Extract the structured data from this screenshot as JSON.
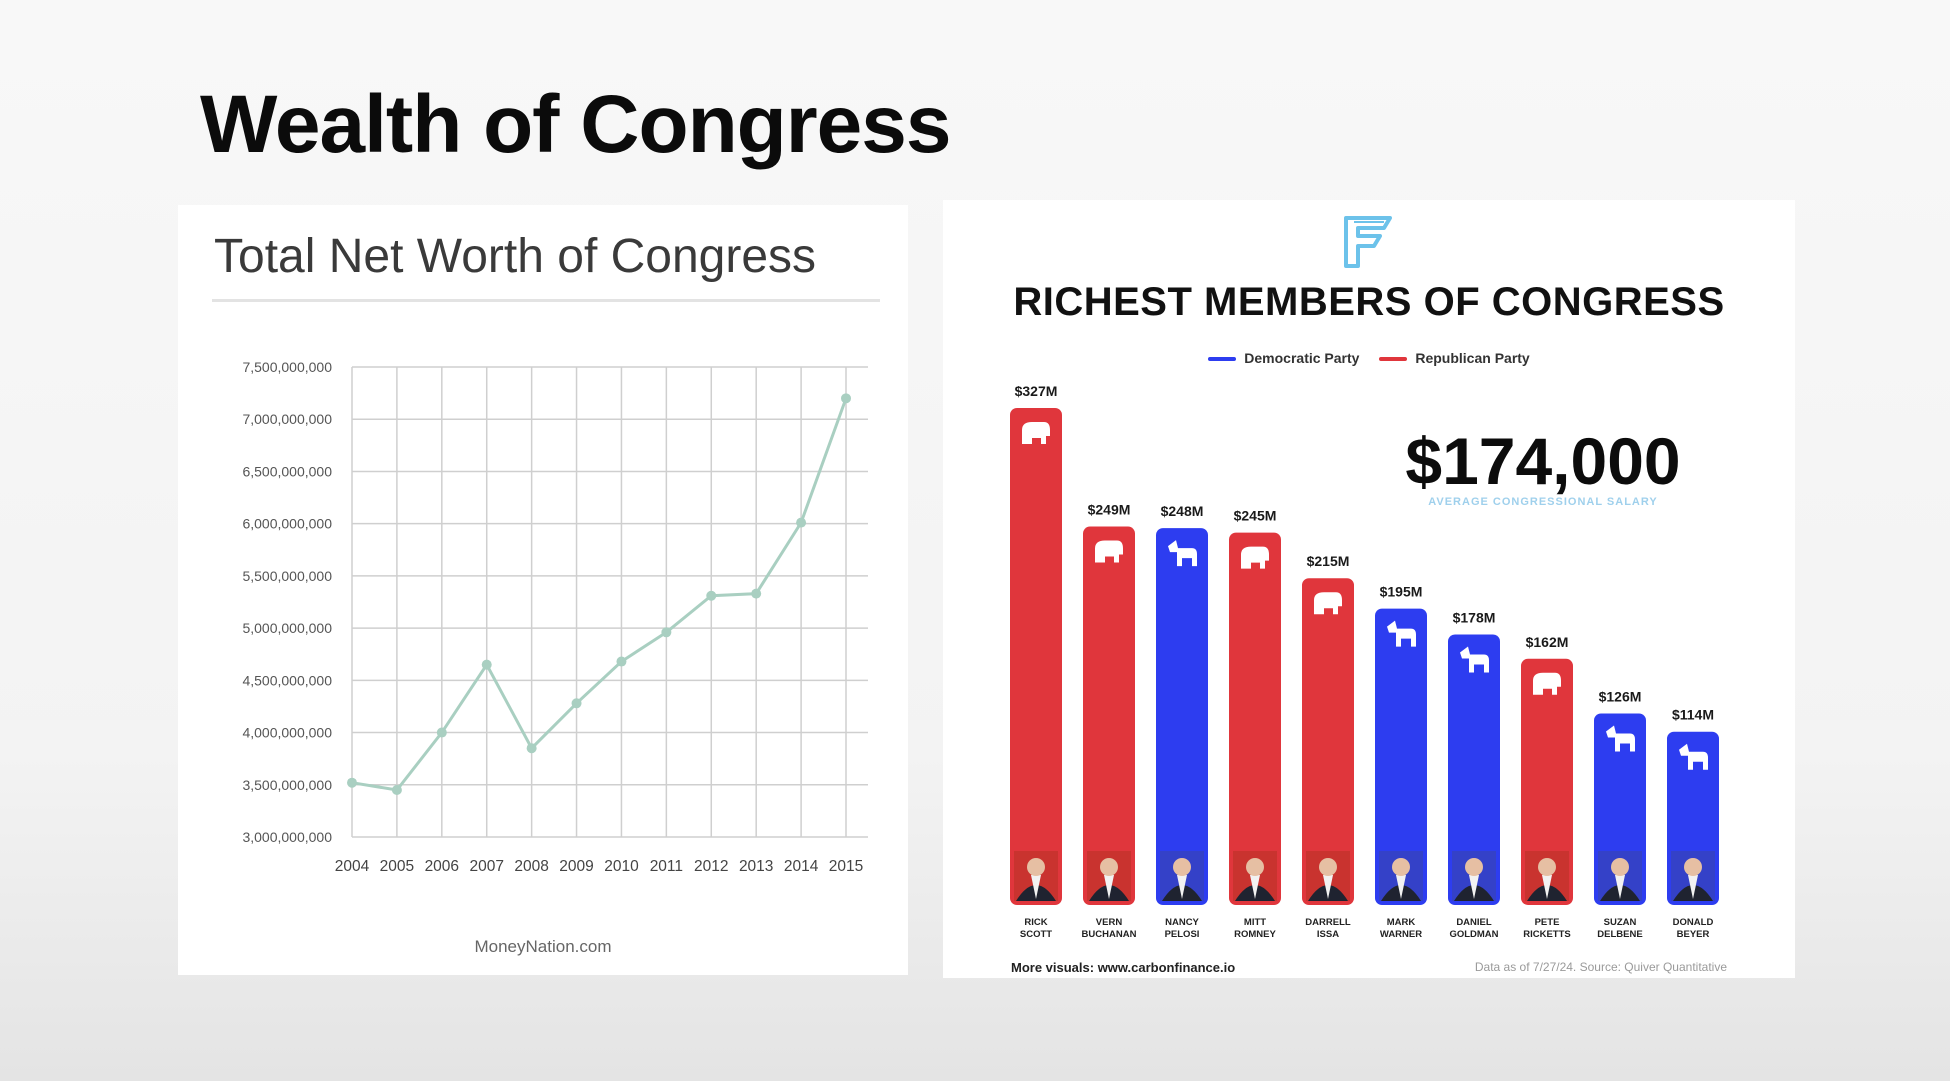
{
  "slide": {
    "title": "Wealth of Congress"
  },
  "left_chart": {
    "title": "Total Net Worth of Congress",
    "source": "MoneyNation.com"
  },
  "right_chart": {
    "title": "RICHEST MEMBERS OF CONGRESS",
    "legend": [
      {
        "label": "Democratic Party",
        "color": "#2d3df0"
      },
      {
        "label": "Republican Party",
        "color": "#e0363c"
      }
    ],
    "salary_value": "$174,000",
    "salary_caption": "AVERAGE CONGRESSIONAL SALARY",
    "footer_left": "More visuals: www.carbonfinance.io",
    "footer_right": "Data as of 7/27/24. Source: Quiver Quantitative"
  },
  "colors": {
    "democratic": "#2d3df0",
    "republican": "#e0363c",
    "line": "#a9cfc1",
    "logo": "#6cc2ea"
  },
  "chart_data": [
    {
      "type": "line",
      "title": "Total Net Worth of Congress",
      "x": [
        "2004",
        "2005",
        "2006",
        "2007",
        "2008",
        "2009",
        "2010",
        "2011",
        "2012",
        "2013",
        "2014",
        "2015"
      ],
      "series": [
        {
          "values": [
            3520000000,
            3450000000,
            4000000000,
            4650000000,
            3850000000,
            4280000000,
            4680000000,
            4960000000,
            5310000000,
            5330000000,
            6010000000,
            7200000000
          ]
        }
      ],
      "y_ticks": [
        "3,000,000,000",
        "3,500,000,000",
        "4,000,000,000",
        "4,500,000,000",
        "5,000,000,000",
        "5,500,000,000",
        "6,000,000,000",
        "6,500,000,000",
        "7,000,000,000",
        "7,500,000,000"
      ],
      "ylim": [
        3000000000,
        7500000000
      ],
      "grid": true
    },
    {
      "type": "bar",
      "title": "RICHEST MEMBERS OF CONGRESS",
      "categories": [
        [
          "RICK",
          "SCOTT"
        ],
        [
          "VERN",
          "BUCHANAN"
        ],
        [
          "NANCY",
          "PELOSI"
        ],
        [
          "MITT",
          "ROMNEY"
        ],
        [
          "DARRELL",
          "ISSA"
        ],
        [
          "MARK",
          "WARNER"
        ],
        [
          "DANIEL",
          "GOLDMAN"
        ],
        [
          "PETE",
          "RICKETTS"
        ],
        [
          "SUZAN",
          "DELBENE"
        ],
        [
          "DONALD",
          "BEYER"
        ]
      ],
      "values": [
        327,
        249,
        248,
        245,
        215,
        195,
        178,
        162,
        126,
        114
      ],
      "value_labels": [
        "$327M",
        "$249M",
        "$248M",
        "$245M",
        "$215M",
        "$195M",
        "$178M",
        "$162M",
        "$126M",
        "$114M"
      ],
      "party": [
        "Republican",
        "Republican",
        "Democratic",
        "Republican",
        "Republican",
        "Democratic",
        "Democratic",
        "Republican",
        "Democratic",
        "Democratic"
      ],
      "grid": false
    }
  ]
}
